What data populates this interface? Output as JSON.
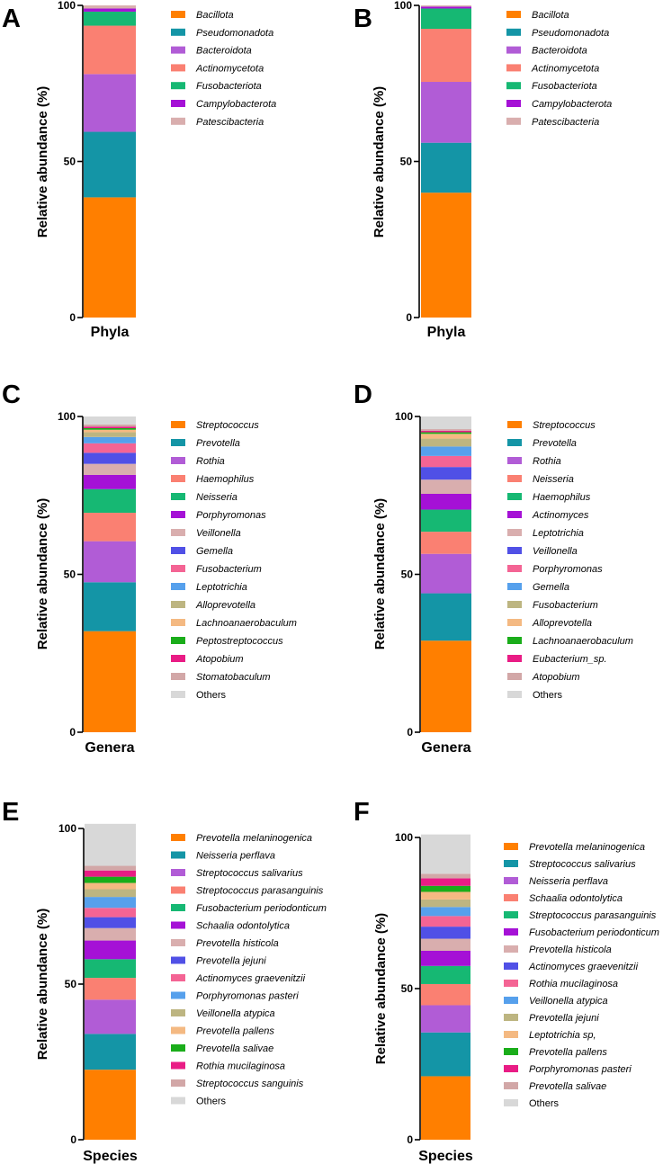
{
  "colors": [
    "#FF7F00",
    "#1495A6",
    "#B15CD6",
    "#FA8072",
    "#16B873",
    "#A511D6",
    "#D9AEAE",
    "#5050E6",
    "#F46494",
    "#56A0EC",
    "#BDB581",
    "#F4B982",
    "#1AAD1A",
    "#E91C85",
    "#D2A7A7",
    "#D8D8D8"
  ],
  "chart_data": [
    {
      "type": "stacked_bar",
      "panel": "A",
      "category": "Phyla",
      "ylabel": "Relative abundance (%)",
      "ylim": [
        0,
        100
      ],
      "yticks": [
        "0",
        "50",
        "100"
      ],
      "series": [
        {
          "name": "Bacillota",
          "value": 38.5
        },
        {
          "name": "Pseudomonadota",
          "value": 21.0
        },
        {
          "name": "Bacteroidota",
          "value": 18.5
        },
        {
          "name": "Actinomycetota",
          "value": 15.5
        },
        {
          "name": "Fusobacteriota",
          "value": 4.5
        },
        {
          "name": "Campylobacterota",
          "value": 1.0
        },
        {
          "name": "Patescibacteria",
          "value": 1.0
        }
      ]
    },
    {
      "type": "stacked_bar",
      "panel": "B",
      "category": "Phyla",
      "ylabel": "Relative abundance (%)",
      "ylim": [
        0,
        100
      ],
      "yticks": [
        "0",
        "50",
        "100"
      ],
      "series": [
        {
          "name": "Bacillota",
          "value": 40.0
        },
        {
          "name": "Pseudomonadota",
          "value": 16.0
        },
        {
          "name": "Bacteroidota",
          "value": 19.5
        },
        {
          "name": "Actinomycetota",
          "value": 17.0
        },
        {
          "name": "Fusobacteriota",
          "value": 6.5
        },
        {
          "name": "Campylobacterota",
          "value": 0.6
        },
        {
          "name": "Patescibacteria",
          "value": 0.4
        }
      ]
    },
    {
      "type": "stacked_bar",
      "panel": "C",
      "category": "Genera",
      "ylabel": "Relative abundance (%)",
      "ylim": [
        0,
        100
      ],
      "yticks": [
        "0",
        "50",
        "100"
      ],
      "series": [
        {
          "name": "Streptococcus",
          "value": 32.0
        },
        {
          "name": "Prevotella",
          "value": 15.5
        },
        {
          "name": "Rothia",
          "value": 13.0
        },
        {
          "name": "Haemophilus",
          "value": 9.0
        },
        {
          "name": "Neisseria",
          "value": 7.5
        },
        {
          "name": "Porphyromonas",
          "value": 4.5
        },
        {
          "name": "Veillonella",
          "value": 3.5
        },
        {
          "name": "Gemella",
          "value": 3.5
        },
        {
          "name": "Fusobacterium",
          "value": 3.0
        },
        {
          "name": "Leptotrichia",
          "value": 2.0
        },
        {
          "name": "Alloprevotella",
          "value": 1.5
        },
        {
          "name": "Lachnoanaerobaculum",
          "value": 0.8
        },
        {
          "name": "Peptostreptococcus",
          "value": 0.5
        },
        {
          "name": "Atopobium",
          "value": 0.5
        },
        {
          "name": "Stomatobaculum",
          "value": 0.7
        },
        {
          "name": "Others",
          "value": 2.5
        }
      ]
    },
    {
      "type": "stacked_bar",
      "panel": "D",
      "category": "Genera",
      "ylabel": "Relative abundance (%)",
      "ylim": [
        0,
        100
      ],
      "yticks": [
        "0",
        "50",
        "100"
      ],
      "series": [
        {
          "name": "Streptococcus",
          "value": 29.0
        },
        {
          "name": "Prevotella",
          "value": 15.0
        },
        {
          "name": "Rothia",
          "value": 12.5
        },
        {
          "name": "Neisseria",
          "value": 7.0
        },
        {
          "name": "Haemophilus",
          "value": 7.0
        },
        {
          "name": "Actinomyces",
          "value": 5.0
        },
        {
          "name": "Leptotrichia",
          "value": 4.5
        },
        {
          "name": "Veillonella",
          "value": 4.0
        },
        {
          "name": "Porphyromonas",
          "value": 3.5
        },
        {
          "name": "Gemella",
          "value": 3.0
        },
        {
          "name": "Fusobacterium",
          "value": 2.5
        },
        {
          "name": "Alloprevotella",
          "value": 1.5
        },
        {
          "name": "Lachnoanaerobaculum",
          "value": 0.5
        },
        {
          "name": "Eubacterium_sp.",
          "value": 0.5
        },
        {
          "name": "Atopobium",
          "value": 0.5
        },
        {
          "name": "Others",
          "value": 4.0
        }
      ]
    },
    {
      "type": "stacked_bar",
      "panel": "E",
      "category": "Species",
      "ylabel": "Relative abundance (%)",
      "ylim": [
        0,
        100
      ],
      "yticks": [
        "0",
        "50",
        "100"
      ],
      "series": [
        {
          "name": "Prevotella melaninogenica",
          "value": 22.5
        },
        {
          "name": "Neisseria perflava",
          "value": 11.5
        },
        {
          "name": "Streptococcus salivarius",
          "value": 11.0
        },
        {
          "name": "Streptococcus parasanguinis",
          "value": 7.0
        },
        {
          "name": "Fusobacterium periodonticum",
          "value": 6.0
        },
        {
          "name": "Schaalia odontolytica",
          "value": 6.0
        },
        {
          "name": "Prevotella histicola",
          "value": 4.0
        },
        {
          "name": "Prevotella jejuni",
          "value": 3.5
        },
        {
          "name": "Actinomyces graevenitzii",
          "value": 3.0
        },
        {
          "name": "Porphyromonas pasteri",
          "value": 3.5
        },
        {
          "name": "Veillonella atypica",
          "value": 2.5
        },
        {
          "name": "Prevotella pallens",
          "value": 2.0
        },
        {
          "name": "Prevotella salivae",
          "value": 2.0
        },
        {
          "name": "Rothia mucilaginosa",
          "value": 2.0
        },
        {
          "name": "Streptococcus sanguinis",
          "value": 1.5
        },
        {
          "name": "Others",
          "value": 13.5
        }
      ]
    },
    {
      "type": "stacked_bar",
      "panel": "F",
      "category": "Species",
      "ylabel": "Relative abundance (%)",
      "ylim": [
        0,
        100
      ],
      "yticks": [
        "0",
        "50",
        "100"
      ],
      "series": [
        {
          "name": "Prevotella melaninogenica",
          "value": 21.0
        },
        {
          "name": "Streptococcus salivarius",
          "value": 14.5
        },
        {
          "name": "Neisseria perflava",
          "value": 9.0
        },
        {
          "name": "Schaalia odontolytica",
          "value": 7.0
        },
        {
          "name": "Streptococcus parasanguinis",
          "value": 6.0
        },
        {
          "name": "Fusobacterium periodonticum",
          "value": 5.0
        },
        {
          "name": "Prevotella histicola",
          "value": 4.0
        },
        {
          "name": "Actinomyces graevenitzii",
          "value": 4.0
        },
        {
          "name": "Rothia mucilaginosa",
          "value": 3.5
        },
        {
          "name": "Veillonella atypica",
          "value": 3.0
        },
        {
          "name": "Prevotella jejuni",
          "value": 2.5
        },
        {
          "name": "Leptotrichia sp,",
          "value": 2.5
        },
        {
          "name": "Prevotella pallens",
          "value": 2.0
        },
        {
          "name": "Porphyromonas pasteri",
          "value": 2.5
        },
        {
          "name": "Prevotella salivae",
          "value": 1.5
        },
        {
          "name": "Others",
          "value": 13.0
        }
      ]
    }
  ]
}
